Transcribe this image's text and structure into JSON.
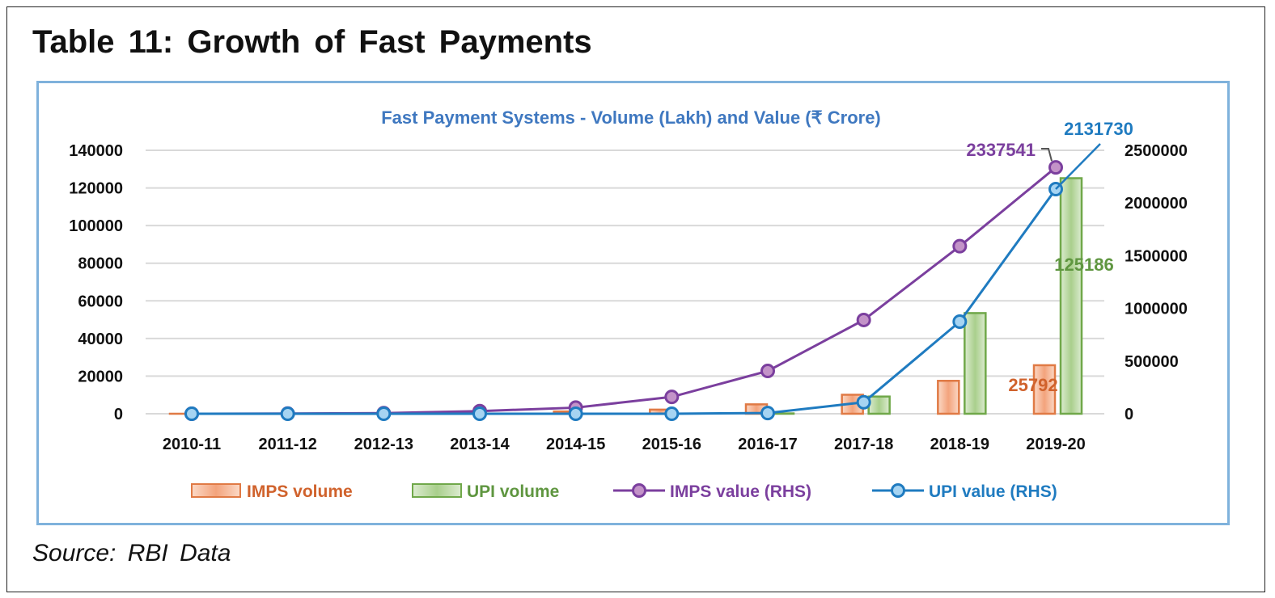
{
  "heading": "Table 11: Growth of Fast Payments",
  "source": "Source:  RBI  Data",
  "chart_data": {
    "type": "bar+line",
    "title": "Fast Payment Systems - Volume (Lakh) and Value (₹ Crore)",
    "categories": [
      "2010-11",
      "2011-12",
      "2012-13",
      "2013-14",
      "2014-15",
      "2015-16",
      "2016-17",
      "2017-18",
      "2018-19",
      "2019-20"
    ],
    "y_left": {
      "min": 0,
      "max": 140000,
      "ticks": [
        0,
        20000,
        40000,
        60000,
        80000,
        100000,
        120000,
        140000
      ]
    },
    "y_right": {
      "min": 0,
      "max": 2500000,
      "ticks": [
        0,
        500000,
        1000000,
        1500000,
        2000000,
        2500000
      ]
    },
    "grid": true,
    "legend_position": "bottom",
    "series": [
      {
        "name": "IMPS volume",
        "type": "bar",
        "axis": "left",
        "color": "#e07a45",
        "values": [
          7,
          66,
          222,
          780,
          1200,
          2200,
          5000,
          10100,
          17500,
          25792
        ],
        "data_label": "25792"
      },
      {
        "name": "UPI volume",
        "type": "bar",
        "axis": "left",
        "color": "#70a84a",
        "values": [
          0,
          0,
          0,
          0,
          0,
          0,
          180,
          9150,
          53500,
          125186
        ],
        "data_label": "125186"
      },
      {
        "name": "IMPS value (RHS)",
        "type": "line",
        "axis": "right",
        "color": "#7b3f9e",
        "values": [
          94,
          1500,
          6000,
          25000,
          58000,
          160000,
          406000,
          890000,
          1590000,
          2337541
        ],
        "data_label": "2337541"
      },
      {
        "name": "UPI value (RHS)",
        "type": "line",
        "axis": "right",
        "color": "#1f7bc0",
        "values": [
          0,
          0,
          0,
          0,
          0,
          0,
          6900,
          109000,
          874000,
          2131730
        ],
        "data_label": "2131730"
      }
    ]
  }
}
